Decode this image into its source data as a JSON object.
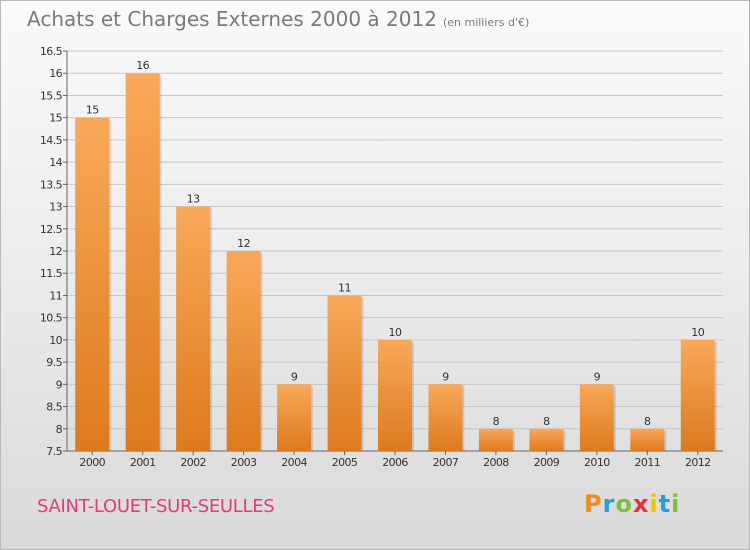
{
  "header": {
    "title": "Achats et Charges Externes 2000 à 2012",
    "unit": "(en milliers d'€)"
  },
  "footer": {
    "commune": "SAINT-LOUET-SUR-SEULLES",
    "brand": {
      "letters": [
        "P",
        "r",
        "o",
        "x",
        "i",
        "t",
        "i"
      ],
      "colors": [
        "#f08a1c",
        "#2a9ad8",
        "#7fbf3c",
        "#e2313b",
        "#f4c300",
        "#2a9ad8",
        "#7fbf3c"
      ]
    }
  },
  "colors": {
    "bar_top": "#f9a85a",
    "bar_bottom": "#dd7a1e",
    "axis": "#666666",
    "grid": "#c8c8c8"
  },
  "chart_data": {
    "type": "bar",
    "title": "Achats et Charges Externes 2000 à 2012",
    "categories": [
      "2000",
      "2001",
      "2002",
      "2003",
      "2004",
      "2005",
      "2006",
      "2007",
      "2008",
      "2009",
      "2010",
      "2011",
      "2012"
    ],
    "values": [
      15,
      16,
      13,
      12,
      9,
      11,
      10,
      9,
      8,
      8,
      9,
      8,
      10
    ],
    "ylim": [
      7.5,
      16.5
    ],
    "yticks": [
      "7.5",
      "8",
      "8.5",
      "9",
      "9.5",
      "10",
      "10.5",
      "11",
      "11.5",
      "12",
      "12.5",
      "13",
      "13.5",
      "14",
      "14.5",
      "15",
      "15.5",
      "16",
      "16.5"
    ],
    "xlabel": "",
    "ylabel": ""
  }
}
